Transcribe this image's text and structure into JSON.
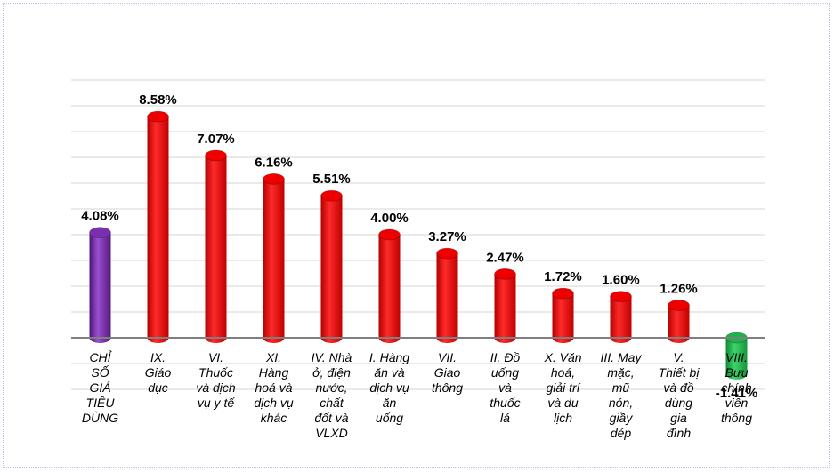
{
  "chart_data": {
    "type": "bar",
    "title": "",
    "xlabel": "",
    "ylabel": "",
    "ylim": [
      -2,
      10
    ],
    "grid": true,
    "categories": [
      [
        "CHỈ",
        "SỐ",
        "GIÁ",
        "TIÊU",
        "DÙNG"
      ],
      [
        "IX.",
        "Giáo",
        "dục"
      ],
      [
        "VI.",
        "Thuốc",
        "và dịch",
        "vụ y tế"
      ],
      [
        "XI.",
        "Hàng",
        "hoá và",
        "dịch vụ",
        "khác"
      ],
      [
        "IV. Nhà",
        "ở, điện",
        "nước,",
        "chất",
        "đốt và",
        "VLXD"
      ],
      [
        "I. Hàng",
        "ăn và",
        "dịch vụ",
        "ăn",
        "uống"
      ],
      [
        "VII.",
        "Giao",
        "thông"
      ],
      [
        "II. Đồ",
        "uống",
        "và",
        "thuốc",
        "lá"
      ],
      [
        "X. Văn",
        "hoá,",
        "giải trí",
        "và du",
        "lịch"
      ],
      [
        "III. May",
        "mặc,",
        "mũ",
        "nón,",
        "giầy",
        "dép"
      ],
      [
        "V.",
        "Thiết bị",
        "và đồ",
        "dùng",
        "gia",
        "đình"
      ],
      [
        "VIII.",
        "Bưu",
        "chính",
        "viễn",
        "thông"
      ]
    ],
    "values": [
      4.08,
      8.58,
      7.07,
      6.16,
      5.51,
      4.0,
      3.27,
      2.47,
      1.72,
      1.6,
      1.26,
      -1.41
    ],
    "value_labels": [
      "4.08%",
      "8.58%",
      "7.07%",
      "6.16%",
      "5.51%",
      "4.00%",
      "3.27%",
      "2.47%",
      "1.72%",
      "1.60%",
      "1.26%",
      "-1.41%"
    ],
    "colors": {
      "index": "#7a2fb0",
      "positive": "#ee0000",
      "negative": "#1fb24a",
      "grid": "#d4d4d4",
      "axis": "#7f7f7f"
    }
  }
}
